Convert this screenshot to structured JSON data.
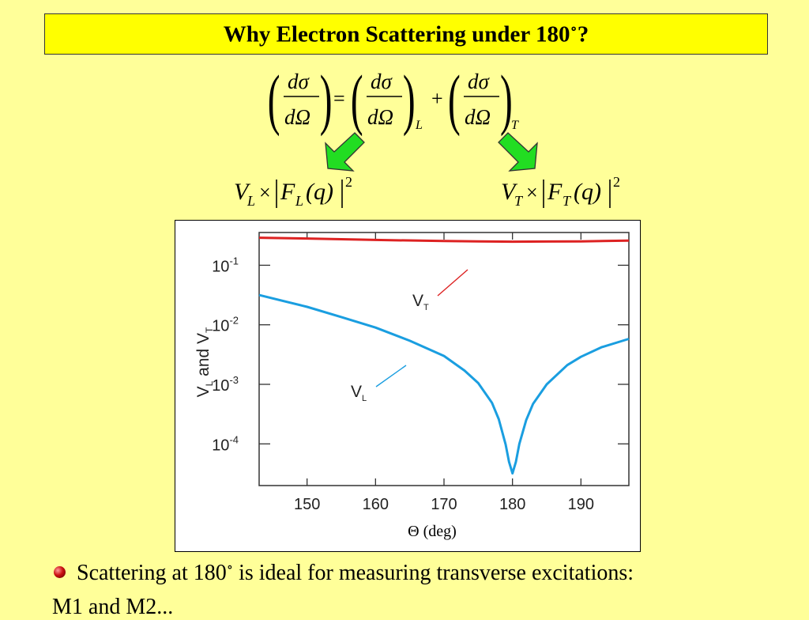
{
  "slide": {
    "title_main": "Why Electron Scattering under 180",
    "title_degree": "∘",
    "title_end": "?"
  },
  "formula": {
    "numerator": "dσ",
    "denominator": "dΩ",
    "equals": "=",
    "plus": "+",
    "subscript_L": "L",
    "subscript_T": "T",
    "arrow_color": "#22dd22",
    "left_term": {
      "V": "V",
      "V_sub": "L",
      "times": "×",
      "F": "F",
      "F_sub": "L",
      "arg": "(q)",
      "power": "2"
    },
    "right_term": {
      "V": "V",
      "V_sub": "T",
      "times": "×",
      "F": "F",
      "F_sub": "T",
      "arg": "(q)",
      "power": "2"
    }
  },
  "chart_data": {
    "type": "line",
    "xlabel_symbol": "Θ",
    "xlabel_unit": "(deg)",
    "ylabel": {
      "parts": [
        "V",
        "L",
        " and V",
        "T"
      ]
    },
    "xlim": [
      143,
      197
    ],
    "ylim_log10": [
      -4.7,
      -0.45
    ],
    "log_y": true,
    "x_ticks": [
      150,
      160,
      170,
      180,
      190
    ],
    "y_ticks": [
      {
        "value": 0.1,
        "base": "10",
        "exp": "-1"
      },
      {
        "value": 0.01,
        "base": "10",
        "exp": "-2"
      },
      {
        "value": 0.001,
        "base": "10",
        "exp": "-3"
      },
      {
        "value": 0.0001,
        "base": "10",
        "exp": "-4"
      }
    ],
    "series": [
      {
        "name": "VT",
        "label_main": "V",
        "label_sub": "T",
        "color": "#dd2222",
        "x": [
          143,
          150,
          160,
          170,
          175,
          180,
          185,
          190,
          197
        ],
        "y": [
          0.29,
          0.281,
          0.266,
          0.255,
          0.251,
          0.249,
          0.25,
          0.252,
          0.26
        ]
      },
      {
        "name": "VL",
        "label_main": "V",
        "label_sub": "L",
        "color": "#1a9ee0",
        "x": [
          143,
          150,
          155,
          160,
          165,
          170,
          173,
          175,
          177,
          178,
          179,
          179.5,
          180,
          180.5,
          181,
          182,
          183,
          185,
          188,
          190,
          193,
          197
        ],
        "y": [
          0.0316,
          0.02,
          0.0135,
          0.009,
          0.0054,
          0.003,
          0.0017,
          0.00105,
          0.00049,
          0.00026,
          9.8e-05,
          5e-05,
          3.2e-05,
          5e-05,
          9.9e-05,
          0.00025,
          0.00047,
          0.001,
          0.0021,
          0.0029,
          0.0042,
          0.0058
        ]
      }
    ]
  },
  "bullet": {
    "text_before": "Scattering at 180",
    "degree": "∘",
    "text_after": " is ideal for measuring transverse excitations:",
    "next_line": "M1 and M2..."
  }
}
